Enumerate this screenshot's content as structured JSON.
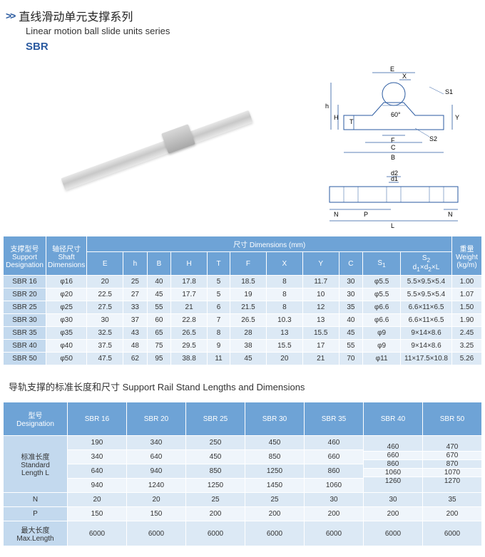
{
  "header": {
    "chevron": ">>",
    "title_cn": "直线滑动单元支撑系列",
    "title_en": "Linear motion ball slide units series",
    "series": "SBR"
  },
  "diagram": {
    "labels": [
      "E",
      "X",
      "S1",
      "h",
      "H",
      "T",
      "Y",
      "60°",
      "F",
      "C",
      "S2",
      "B",
      "d2",
      "d1",
      "N",
      "P",
      "N",
      "L"
    ]
  },
  "dim_table": {
    "head_row1": {
      "support_cn": "支撑型号",
      "support_en": "Support",
      "support_en2": "Designation",
      "shaft_cn": "轴径尺寸",
      "shaft_en": "Shaft",
      "shaft_en2": "Dimensions",
      "dim_cn": "尺寸",
      "dim_en": "Dimensions  (mm)",
      "weight_cn": "重量",
      "weight_en": "Weight",
      "weight_unit": "(kg/m)"
    },
    "columns": [
      "E",
      "h",
      "B",
      "H",
      "T",
      "F",
      "X",
      "Y",
      "C",
      "S1",
      "S2 d1×d2×L"
    ],
    "rows": [
      {
        "d": "SBR 16",
        "s": "φ16",
        "v": [
          "20",
          "25",
          "40",
          "17.8",
          "5",
          "18.5",
          "8",
          "11.7",
          "30",
          "φ5.5",
          "5.5×9.5×5.4"
        ],
        "w": "1.00"
      },
      {
        "d": "SBR 20",
        "s": "φ20",
        "v": [
          "22.5",
          "27",
          "45",
          "17.7",
          "5",
          "19",
          "8",
          "10",
          "30",
          "φ5.5",
          "5.5×9.5×5.4"
        ],
        "w": "1.07"
      },
      {
        "d": "SBR 25",
        "s": "φ25",
        "v": [
          "27.5",
          "33",
          "55",
          "21",
          "6",
          "21.5",
          "8",
          "12",
          "35",
          "φ6.6",
          "6.6×11×6.5"
        ],
        "w": "1.50"
      },
      {
        "d": "SBR 30",
        "s": "φ30",
        "v": [
          "30",
          "37",
          "60",
          "22.8",
          "7",
          "26.5",
          "10.3",
          "13",
          "40",
          "φ6.6",
          "6.6×11×6.5"
        ],
        "w": "1.90"
      },
      {
        "d": "SBR 35",
        "s": "φ35",
        "v": [
          "32.5",
          "43",
          "65",
          "26.5",
          "8",
          "28",
          "13",
          "15.5",
          "45",
          "φ9",
          "9×14×8.6"
        ],
        "w": "2.45"
      },
      {
        "d": "SBR 40",
        "s": "φ40",
        "v": [
          "37.5",
          "48",
          "75",
          "29.5",
          "9",
          "38",
          "15.5",
          "17",
          "55",
          "φ9",
          "9×14×8.6"
        ],
        "w": "3.25"
      },
      {
        "d": "SBR 50",
        "s": "φ50",
        "v": [
          "47.5",
          "62",
          "95",
          "38.8",
          "11",
          "45",
          "20",
          "21",
          "70",
          "φ11",
          "11×17.5×10.8"
        ],
        "w": "5.26"
      }
    ]
  },
  "sub_title": "导轨支撑的标准长度和尺寸  Support Rail Stand Lengths and Dimensions",
  "len_table": {
    "head_cn": "型号",
    "head_en": "Designation",
    "cols": [
      "SBR 16",
      "SBR 20",
      "SBR 25",
      "SBR 30",
      "SBR 35",
      "SBR 40",
      "SBR 50"
    ],
    "std_cn": "标准长度",
    "std_en": "Standard",
    "std_en2": "Length  L",
    "std_rows": [
      [
        "190",
        "340",
        "250",
        "450",
        "460"
      ],
      [
        "340",
        "640",
        "450",
        "850",
        "660"
      ],
      [
        "640",
        "940",
        "850",
        "1250",
        "860"
      ],
      [
        "940",
        "1240",
        "1250",
        "1450",
        "1060"
      ]
    ],
    "std_col6": [
      "460",
      "660",
      "860",
      "1060",
      "1260"
    ],
    "std_col7": [
      "470",
      "670",
      "870",
      "1070",
      "1270"
    ],
    "N_label": "N",
    "N": [
      "20",
      "20",
      "25",
      "25",
      "30",
      "30",
      "35"
    ],
    "P_label": "P",
    "P": [
      "150",
      "150",
      "200",
      "200",
      "200",
      "200",
      "200"
    ],
    "max_label": "最大长度 Max.Length",
    "max": [
      "6000",
      "6000",
      "6000",
      "6000",
      "6000",
      "6000",
      "6000"
    ]
  },
  "colors": {
    "header_bg": "#6ea3d6",
    "row_odd": "#dce9f5",
    "row_even": "#eff5fb",
    "rowhead": "#c3d9ee",
    "line": "#2a5aa0"
  }
}
